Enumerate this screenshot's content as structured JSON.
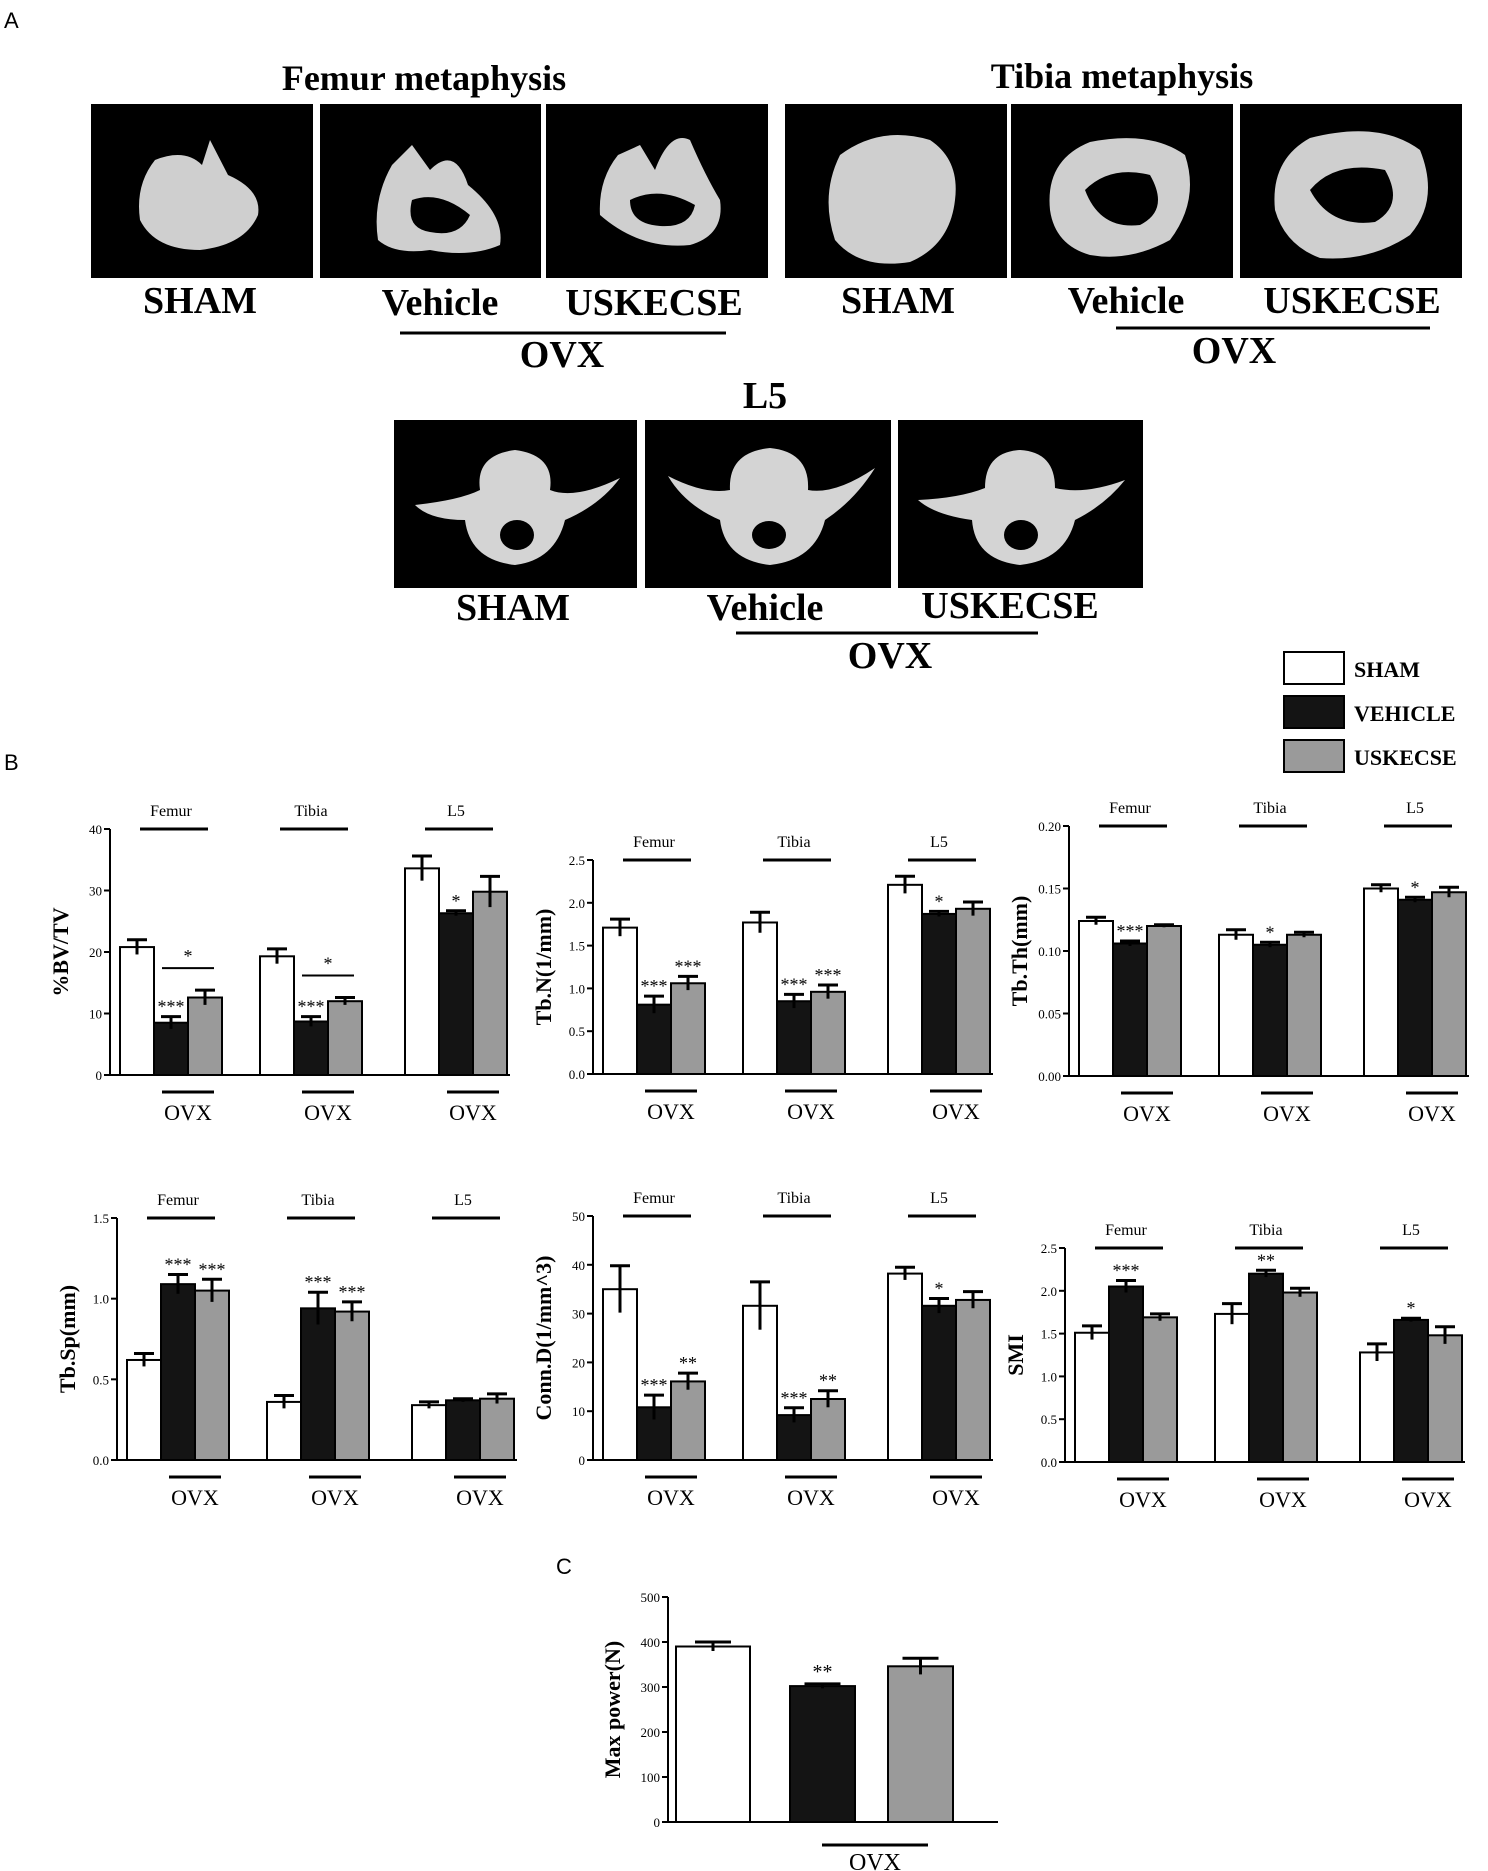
{
  "panel_a": {
    "letter": "A",
    "femur_title": "Femur metaphysis",
    "tibia_title": "Tibia metaphysis",
    "l5_title": "L5",
    "group_labels": [
      "SHAM",
      "Vehicle",
      "USKECSE"
    ],
    "ovx_label": "OVX"
  },
  "panel_b": {
    "letter": "B"
  },
  "panel_c": {
    "letter": "C"
  },
  "colors": {
    "sham": "#ffffff",
    "vehicle": "#141414",
    "uskecse": "#9a9a9a",
    "image_bg": "#000000",
    "bone": "#d4d4d4"
  },
  "legend": [
    {
      "label": "SHAM",
      "color": "#ffffff"
    },
    {
      "label": "VEHICLE",
      "color": "#141414"
    },
    {
      "label": "USKECSE",
      "color": "#9a9a9a"
    }
  ],
  "chart_data": [
    {
      "type": "bar",
      "ylabel": "%BV/TV",
      "ylim": [
        0,
        40
      ],
      "yticks": [
        "0",
        "10",
        "20",
        "30",
        "40"
      ],
      "groups": [
        "Femur",
        "Tibia",
        "L5"
      ],
      "series_names": [
        "SHAM",
        "VEHICLE",
        "USKECSE"
      ],
      "values": [
        [
          20.8,
          8.5,
          12.6
        ],
        [
          19.3,
          8.7,
          12.0
        ],
        [
          33.6,
          26.3,
          29.8
        ]
      ],
      "errors": [
        [
          1.2,
          1.0,
          1.2
        ],
        [
          1.2,
          0.8,
          0.6
        ],
        [
          2.0,
          0.4,
          2.5
        ]
      ],
      "stars": [
        [
          "",
          "***",
          ""
        ],
        [
          "",
          "***",
          ""
        ],
        [
          "",
          "*",
          ""
        ]
      ],
      "bracket_stars": [
        "*",
        "*",
        ""
      ],
      "ovx_label": "OVX"
    },
    {
      "type": "bar",
      "ylabel": "Tb.N(1/mm)",
      "ylim": [
        0,
        2.5
      ],
      "yticks": [
        "0.0",
        "0.5",
        "1.0",
        "1.5",
        "2.0",
        "2.5"
      ],
      "groups": [
        "Femur",
        "Tibia",
        "L5"
      ],
      "series_names": [
        "SHAM",
        "VEHICLE",
        "USKECSE"
      ],
      "values": [
        [
          1.71,
          0.81,
          1.06
        ],
        [
          1.77,
          0.85,
          0.96
        ],
        [
          2.21,
          1.87,
          1.93
        ]
      ],
      "errors": [
        [
          0.1,
          0.1,
          0.08
        ],
        [
          0.12,
          0.08,
          0.08
        ],
        [
          0.1,
          0.03,
          0.08
        ]
      ],
      "stars": [
        [
          "",
          "***",
          "***"
        ],
        [
          "",
          "***",
          "***"
        ],
        [
          "",
          "*",
          ""
        ]
      ],
      "bracket_stars": [
        "",
        "",
        ""
      ],
      "ovx_label": "OVX"
    },
    {
      "type": "bar",
      "ylabel": "Tb.Th(mm)",
      "ylim": [
        0,
        0.2
      ],
      "yticks": [
        "0.00",
        "0.05",
        "0.10",
        "0.15",
        "0.20"
      ],
      "groups": [
        "Femur",
        "Tibia",
        "L5"
      ],
      "series_names": [
        "SHAM",
        "VEHICLE",
        "USKECSE"
      ],
      "values": [
        [
          0.124,
          0.106,
          0.12
        ],
        [
          0.113,
          0.105,
          0.113
        ],
        [
          0.15,
          0.141,
          0.147
        ]
      ],
      "errors": [
        [
          0.003,
          0.002,
          0.001
        ],
        [
          0.004,
          0.002,
          0.002
        ],
        [
          0.003,
          0.002,
          0.004
        ]
      ],
      "stars": [
        [
          "",
          "***",
          ""
        ],
        [
          "",
          "*",
          ""
        ],
        [
          "",
          "*",
          ""
        ]
      ],
      "bracket_stars": [
        "",
        "",
        ""
      ],
      "ovx_label": "OVX"
    },
    {
      "type": "bar",
      "ylabel": "Tb.Sp(mm)",
      "ylim": [
        0,
        1.5
      ],
      "yticks": [
        "0.0",
        "0.5",
        "1.0",
        "1.5"
      ],
      "groups": [
        "Femur",
        "Tibia",
        "L5"
      ],
      "series_names": [
        "SHAM",
        "VEHICLE",
        "USKECSE"
      ],
      "values": [
        [
          0.62,
          1.09,
          1.05
        ],
        [
          0.36,
          0.94,
          0.92
        ],
        [
          0.34,
          0.37,
          0.38
        ]
      ],
      "errors": [
        [
          0.04,
          0.06,
          0.07
        ],
        [
          0.04,
          0.1,
          0.06
        ],
        [
          0.02,
          0.01,
          0.03
        ]
      ],
      "stars": [
        [
          "",
          "***",
          "***"
        ],
        [
          "",
          "***",
          "***"
        ],
        [
          "",
          "",
          ""
        ]
      ],
      "bracket_stars": [
        "",
        "",
        ""
      ],
      "ovx_label": "OVX"
    },
    {
      "type": "bar",
      "ylabel": "Conn.D(1/mm^3)",
      "ylim": [
        0,
        50
      ],
      "yticks": [
        "0",
        "10",
        "20",
        "30",
        "40",
        "50"
      ],
      "groups": [
        "Femur",
        "Tibia",
        "L5"
      ],
      "series_names": [
        "SHAM",
        "VEHICLE",
        "USKECSE"
      ],
      "values": [
        [
          35,
          10.8,
          16.1
        ],
        [
          31.6,
          9.2,
          12.5
        ],
        [
          38.2,
          31.6,
          32.8
        ]
      ],
      "errors": [
        [
          4.8,
          2.5,
          1.7
        ],
        [
          4.9,
          1.5,
          1.7
        ],
        [
          1.3,
          1.5,
          1.7
        ]
      ],
      "stars": [
        [
          "",
          "***",
          "**"
        ],
        [
          "",
          "***",
          "**"
        ],
        [
          "",
          "*",
          ""
        ]
      ],
      "bracket_stars": [
        "",
        "",
        ""
      ],
      "ovx_label": "OVX"
    },
    {
      "type": "bar",
      "ylabel": "SMI",
      "ylim": [
        0,
        2.5
      ],
      "yticks": [
        "0.0",
        "0.5",
        "1.0",
        "1.5",
        "2.0",
        "2.5"
      ],
      "groups": [
        "Femur",
        "Tibia",
        "L5"
      ],
      "series_names": [
        "SHAM",
        "VEHICLE",
        "USKECSE"
      ],
      "values": [
        [
          1.51,
          2.05,
          1.69
        ],
        [
          1.73,
          2.2,
          1.98
        ],
        [
          1.28,
          1.66,
          1.48
        ]
      ],
      "errors": [
        [
          0.08,
          0.07,
          0.04
        ],
        [
          0.12,
          0.04,
          0.05
        ],
        [
          0.1,
          0.02,
          0.1
        ]
      ],
      "stars": [
        [
          "",
          "***",
          ""
        ],
        [
          "",
          "**",
          ""
        ],
        [
          "",
          "*",
          ""
        ]
      ],
      "bracket_stars": [
        "",
        "",
        ""
      ],
      "ovx_label": "OVX"
    },
    {
      "type": "bar",
      "ylabel": "Max power(N)",
      "ylim": [
        0,
        500
      ],
      "yticks": [
        "0",
        "100",
        "200",
        "300",
        "400",
        "500"
      ],
      "categories": [
        "SHAM",
        "VEHICLE",
        "USKECSE"
      ],
      "values": [
        390,
        302,
        346
      ],
      "errors": [
        10,
        5,
        18
      ],
      "stars": [
        "",
        "**",
        ""
      ],
      "ovx_label": "OVX"
    }
  ]
}
